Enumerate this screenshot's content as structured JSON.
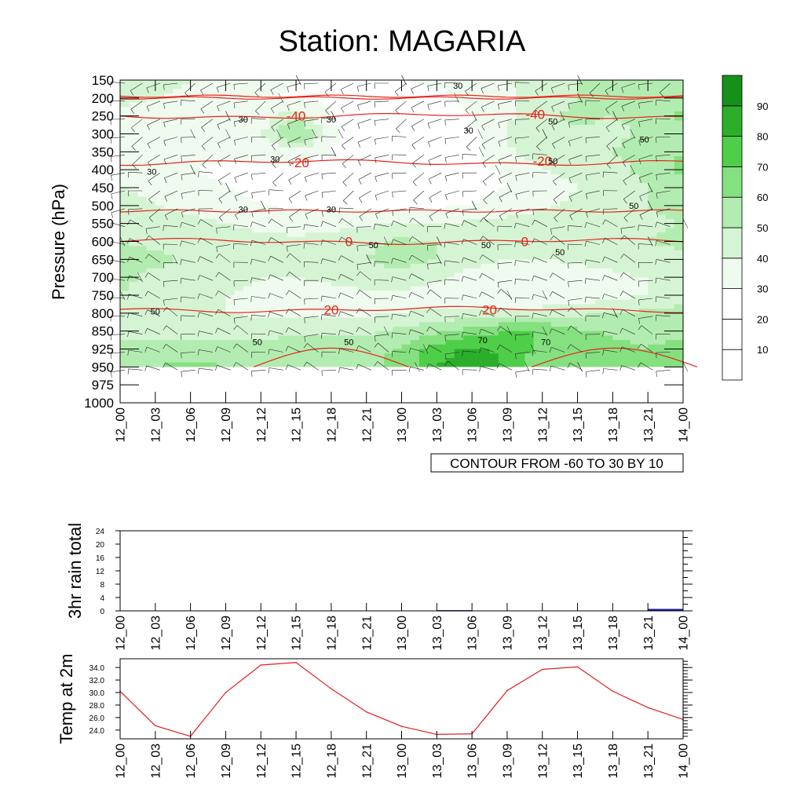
{
  "title": "Station: MAGARIA",
  "colors": {
    "temperature_contour": "#e8231b",
    "rh_contour": "#000000",
    "rain_bar": "#1c1c9c",
    "temp_line": "#e02020",
    "shade_levels": [
      "#ffffff",
      "#ffffff",
      "#ffffff",
      "#f0fbef",
      "#d5f4d3",
      "#b3ecb0",
      "#85e080",
      "#4fce49",
      "#2dae2b",
      "#17901a"
    ]
  },
  "time_labels": [
    "12_00",
    "12_03",
    "12_06",
    "12_09",
    "12_12",
    "12_15",
    "12_18",
    "12_21",
    "13_00",
    "13_03",
    "13_06",
    "13_09",
    "13_12",
    "13_15",
    "13_18",
    "13_21",
    "14_00"
  ],
  "contour_note": "CONTOUR FROM -60 TO 30 BY 10",
  "chart_data": [
    {
      "type": "heatmap",
      "subtype": "time-pressure cross section (RH shading, temperature contours, wind barbs)",
      "ylabel": "Pressure (hPa)",
      "xlabel": "",
      "pressure_levels": [
        150,
        200,
        250,
        300,
        350,
        400,
        450,
        500,
        550,
        600,
        650,
        700,
        750,
        800,
        850,
        925,
        950,
        975,
        1000
      ],
      "y_axis": "categorical pressure levels, top = 150, bottom = 1000",
      "x_categories": [
        "12_00",
        "12_03",
        "12_06",
        "12_09",
        "12_12",
        "12_15",
        "12_18",
        "12_21",
        "13_00",
        "13_03",
        "13_06",
        "13_09",
        "13_12",
        "13_15",
        "13_18",
        "13_21",
        "14_00"
      ],
      "data_extent_bottom_level": 950,
      "colorbar": {
        "levels": [
          10,
          20,
          30,
          40,
          50,
          60,
          70,
          80,
          90
        ],
        "colors": [
          "#ffffff",
          "#ffffff",
          "#ffffff",
          "#f0fbef",
          "#d5f4d3",
          "#b3ecb0",
          "#85e080",
          "#4fce49",
          "#2dae2b",
          "#17901a"
        ]
      },
      "rh_grid_rows_levels": [
        150,
        200,
        250,
        300,
        350,
        400,
        450,
        500,
        550,
        600,
        650,
        700,
        750,
        800,
        850,
        925,
        950
      ],
      "rh_grid": [
        [
          45,
          42,
          40,
          38,
          35,
          30,
          28,
          28,
          30,
          32,
          35,
          40,
          45,
          50,
          55,
          58,
          60
        ],
        [
          42,
          40,
          38,
          35,
          32,
          28,
          26,
          25,
          26,
          28,
          32,
          38,
          45,
          50,
          52,
          55,
          58
        ],
        [
          38,
          35,
          32,
          30,
          35,
          48,
          30,
          24,
          22,
          24,
          30,
          38,
          48,
          52,
          50,
          52,
          62
        ],
        [
          35,
          32,
          30,
          30,
          38,
          65,
          32,
          22,
          20,
          22,
          28,
          40,
          50,
          48,
          48,
          52,
          58
        ],
        [
          38,
          36,
          34,
          32,
          33,
          35,
          30,
          22,
          20,
          22,
          28,
          38,
          48,
          45,
          50,
          55,
          60
        ],
        [
          35,
          32,
          30,
          28,
          28,
          28,
          26,
          22,
          20,
          22,
          26,
          32,
          40,
          42,
          45,
          55,
          62
        ],
        [
          40,
          38,
          34,
          30,
          28,
          27,
          26,
          24,
          22,
          24,
          27,
          30,
          35,
          40,
          44,
          50,
          55
        ],
        [
          42,
          40,
          38,
          34,
          30,
          28,
          28,
          28,
          27,
          28,
          30,
          33,
          38,
          42,
          45,
          50,
          52
        ],
        [
          45,
          45,
          42,
          40,
          38,
          36,
          36,
          38,
          40,
          40,
          42,
          44,
          45,
          46,
          46,
          48,
          50
        ],
        [
          50,
          48,
          45,
          44,
          42,
          42,
          44,
          48,
          52,
          50,
          46,
          45,
          45,
          46,
          48,
          50,
          52
        ],
        [
          55,
          52,
          48,
          45,
          44,
          44,
          46,
          50,
          54,
          50,
          44,
          40,
          40,
          42,
          44,
          46,
          48
        ],
        [
          52,
          48,
          45,
          42,
          40,
          40,
          42,
          45,
          48,
          42,
          36,
          32,
          32,
          35,
          38,
          40,
          42
        ],
        [
          50,
          46,
          42,
          40,
          38,
          36,
          36,
          38,
          38,
          34,
          32,
          30,
          30,
          33,
          36,
          40,
          44
        ],
        [
          48,
          44,
          42,
          40,
          38,
          36,
          36,
          38,
          40,
          42,
          44,
          45,
          46,
          48,
          50,
          52,
          55
        ],
        [
          48,
          46,
          45,
          45,
          46,
          48,
          48,
          48,
          52,
          58,
          65,
          70,
          70,
          62,
          58,
          55,
          55
        ],
        [
          52,
          54,
          56,
          56,
          52,
          58,
          56,
          55,
          62,
          75,
          82,
          78,
          66,
          68,
          64,
          60,
          66
        ],
        [
          55,
          60,
          62,
          60,
          52,
          60,
          60,
          58,
          64,
          80,
          90,
          78,
          62,
          70,
          66,
          62,
          70
        ]
      ],
      "temperature_contours": [
        {
          "value": -40,
          "level_position": 2.0
        },
        {
          "value": -20,
          "level_position": 4.6
        },
        {
          "value": 0,
          "level_position": 9.0
        },
        {
          "value": 20,
          "level_position": 12.8
        }
      ],
      "temperature_contour_labels": [
        "-40",
        "-40",
        "-20",
        "-20",
        "0",
        "0",
        "20",
        "20"
      ],
      "rh_contour_labels": [
        "30",
        "30",
        "30",
        "30",
        "30",
        "30",
        "30",
        "30",
        "50",
        "50",
        "50",
        "50",
        "50",
        "50",
        "50",
        "50",
        "50",
        "50",
        "70",
        "70"
      ]
    },
    {
      "type": "bar",
      "ylabel": "3hr rain total",
      "categories": [
        "12_00",
        "12_03",
        "12_06",
        "12_09",
        "12_12",
        "12_15",
        "12_18",
        "12_21",
        "13_00",
        "13_03",
        "13_06",
        "13_09",
        "13_12",
        "13_15",
        "13_18",
        "13_21",
        "14_00"
      ],
      "values": [
        0,
        0,
        0,
        0,
        0,
        0,
        0,
        0,
        0,
        0.2,
        0,
        0,
        0,
        0,
        0,
        0.6,
        0.6
      ],
      "yticks": [
        "0",
        "4",
        "8",
        "12",
        "16",
        "20",
        "24"
      ],
      "ylim": [
        0,
        24
      ]
    },
    {
      "type": "line",
      "ylabel": "Temp at 2m",
      "categories": [
        "12_00",
        "12_03",
        "12_06",
        "12_09",
        "12_12",
        "12_15",
        "12_18",
        "12_21",
        "13_00",
        "13_03",
        "13_06",
        "13_09",
        "13_12",
        "13_15",
        "13_18",
        "13_21",
        "14_00"
      ],
      "values": [
        30.2,
        24.7,
        23.0,
        30.0,
        34.4,
        34.8,
        30.6,
        26.9,
        24.6,
        23.3,
        23.4,
        30.3,
        33.7,
        34.1,
        30.2,
        27.6,
        25.7
      ],
      "yticks": [
        "24.0",
        "26.0",
        "28.0",
        "30.0",
        "32.0",
        "34.0"
      ],
      "ylim": [
        22.6,
        35.4
      ]
    }
  ]
}
